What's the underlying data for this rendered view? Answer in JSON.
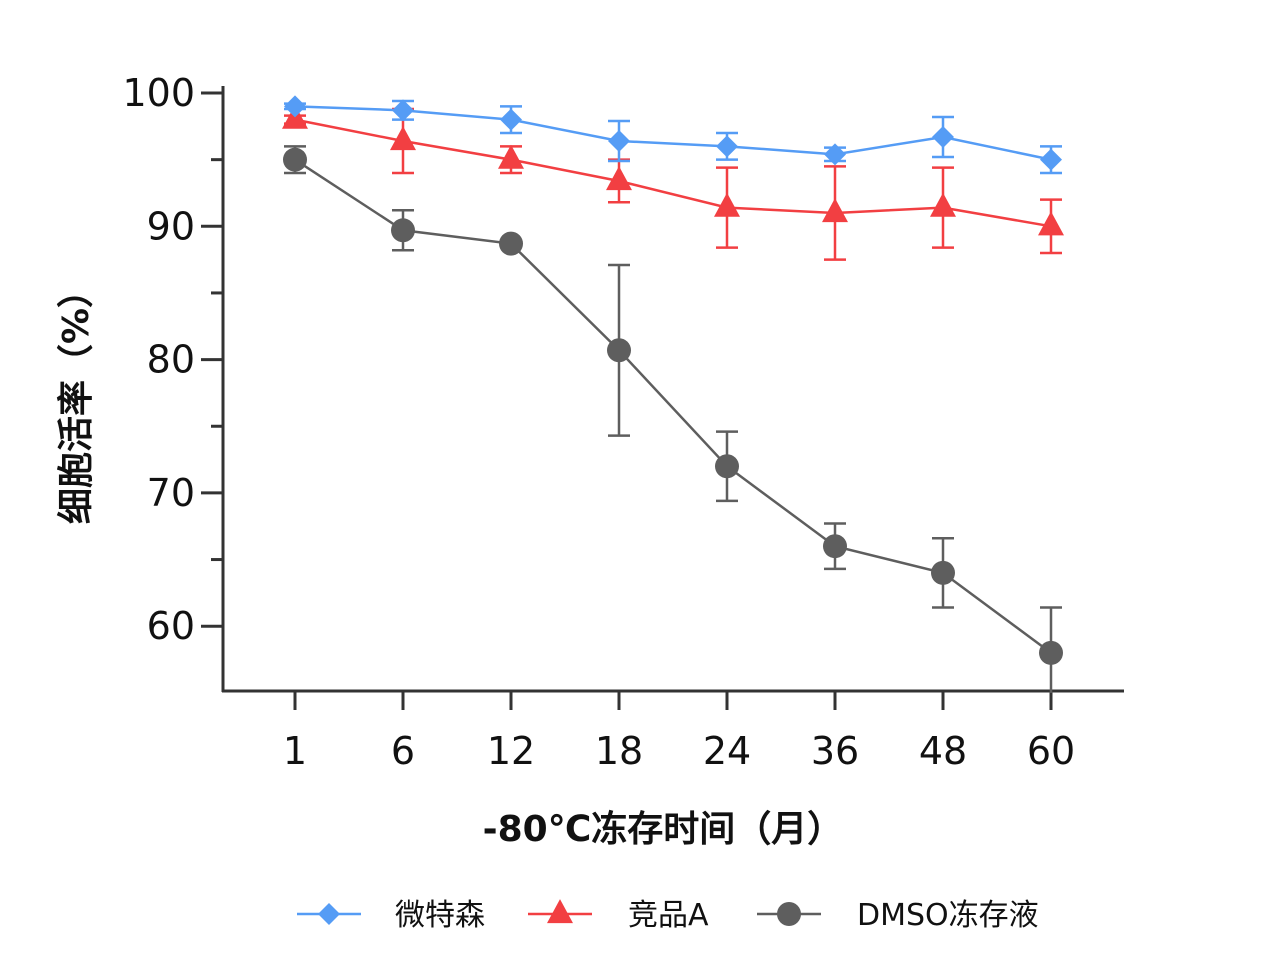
{
  "chart_data": {
    "type": "line",
    "title": "",
    "xlabel": "-80℃冻存时间（月）",
    "ylabel": "细胞活率（%）",
    "categories": [
      "1",
      "6",
      "12",
      "18",
      "24",
      "36",
      "48",
      "60"
    ],
    "ylim": [
      55,
      100
    ],
    "yticks": [
      60,
      70,
      80,
      90,
      100
    ],
    "grid": false,
    "legend_position": "bottom",
    "series": [
      {
        "name": "微特森",
        "color": "#559cf5",
        "marker": "diamond",
        "values": [
          99.0,
          98.7,
          98.0,
          96.4,
          96.0,
          95.4,
          96.7,
          95.0
        ],
        "errors": [
          0.2,
          0.7,
          1.0,
          1.5,
          1.0,
          0.5,
          1.5,
          1.0
        ]
      },
      {
        "name": "竞品A",
        "color": "#f23f42",
        "marker": "triangle",
        "values": [
          98.0,
          96.4,
          95.0,
          93.4,
          91.4,
          91.0,
          91.4,
          90.0
        ],
        "errors": [
          0.3,
          2.4,
          1.0,
          1.6,
          3.0,
          3.5,
          3.0,
          2.0
        ]
      },
      {
        "name": "DMSO冻存液",
        "color": "#5e5e5e",
        "marker": "circle",
        "values": [
          95.0,
          89.7,
          88.7,
          80.7,
          72.0,
          66.0,
          64.0,
          58.0
        ],
        "errors": [
          1.0,
          1.5,
          0.2,
          6.4,
          2.6,
          1.7,
          2.6,
          3.4
        ]
      }
    ]
  }
}
